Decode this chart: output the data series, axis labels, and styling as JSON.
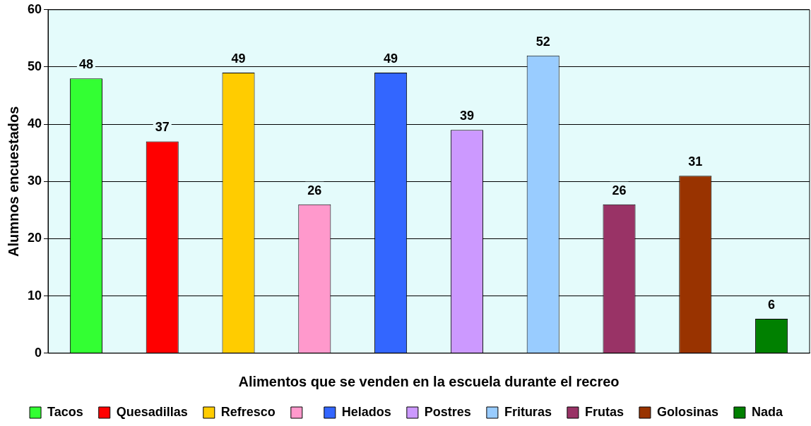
{
  "chart_data": {
    "type": "bar",
    "xlabel": "Alimentos que se venden en la escuela durante el recreo",
    "ylabel": "Alumnos encuestados",
    "categories": [
      null,
      null,
      null,
      null,
      null,
      null,
      null,
      null,
      null,
      null
    ],
    "series": [
      {
        "name": "Tacos",
        "color": "#33ff33",
        "values": [
          48,
          null,
          null,
          null,
          null,
          null,
          null,
          null,
          null,
          null
        ]
      },
      {
        "name": "Quesadillas",
        "color": "#ff0000",
        "values": [
          null,
          37,
          null,
          null,
          null,
          null,
          null,
          null,
          null,
          null
        ]
      },
      {
        "name": "Refresco",
        "color": "#ffcc00",
        "values": [
          null,
          null,
          49,
          null,
          null,
          null,
          null,
          null,
          null,
          null
        ]
      },
      {
        "color": "#ff99cc",
        "values": [
          null,
          null,
          null,
          26,
          null,
          null,
          null,
          null,
          null,
          null
        ]
      },
      {
        "name": "Helados",
        "color": "#3366ff",
        "values": [
          null,
          null,
          null,
          null,
          49,
          null,
          null,
          null,
          null,
          null
        ]
      },
      {
        "name": "Postres",
        "color": "#cc99ff",
        "values": [
          null,
          null,
          null,
          null,
          null,
          39,
          null,
          null,
          null,
          null
        ]
      },
      {
        "name": "Frituras",
        "color": "#99ccff",
        "values": [
          null,
          null,
          null,
          null,
          null,
          null,
          52,
          null,
          null,
          null
        ]
      },
      {
        "name": "Frutas",
        "color": "#993366",
        "values": [
          null,
          null,
          null,
          null,
          null,
          null,
          null,
          26,
          null,
          null
        ]
      },
      {
        "name": "Golosinas",
        "color": "#993300",
        "values": [
          null,
          null,
          null,
          null,
          null,
          null,
          null,
          null,
          31,
          null
        ]
      },
      {
        "name": "Nada",
        "color": "#008000",
        "values": [
          null,
          null,
          null,
          null,
          null,
          null,
          null,
          null,
          null,
          6
        ]
      }
    ],
    "ylim": [
      0,
      60
    ],
    "yticks": [
      0,
      10,
      20,
      30,
      40,
      50,
      60
    ],
    "grid": "y",
    "legend": "bottom",
    "data_labels": true
  }
}
